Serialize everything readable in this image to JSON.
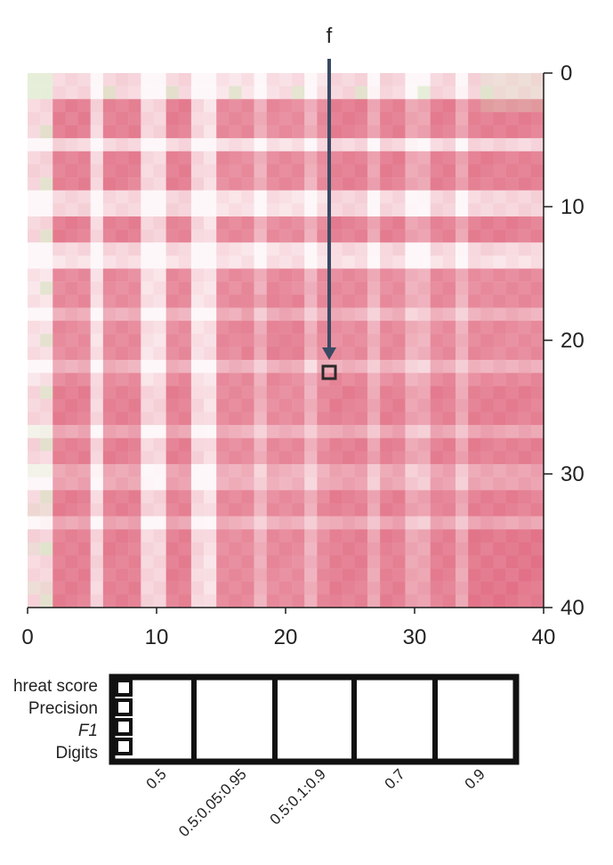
{
  "chart_data": {
    "type": "heatmap",
    "title": "",
    "xlabel": "",
    "ylabel": "",
    "size": 41,
    "x_ticks": [
      "0",
      "10",
      "20",
      "30",
      "40"
    ],
    "y_ticks": [
      "0",
      "10",
      "20",
      "30",
      "40"
    ],
    "xlim": [
      0,
      40
    ],
    "ylim": [
      0,
      40
    ],
    "annotation": {
      "label": "f",
      "cell": [
        24,
        23
      ],
      "arrow_from_above": true
    },
    "colors": {
      "high": "#e0687f",
      "low": "#ffffff",
      "green": "#d8e8c5",
      "marker": "#2a2a2a",
      "arrow": "#3a4a63"
    },
    "block_boundaries": [
      0,
      2,
      6,
      10,
      14,
      18,
      22,
      26,
      30,
      34,
      38,
      41
    ],
    "row_groups": [
      {
        "rows": [
          0,
          1
        ],
        "tone": "green-white"
      },
      {
        "rows": [
          5
        ],
        "tone": "white"
      },
      {
        "rows": [
          9,
          10
        ],
        "tone": "white"
      },
      {
        "rows": [
          13,
          14
        ],
        "tone": "white"
      },
      {
        "rows": [
          18
        ],
        "tone": "light"
      },
      {
        "rows": [
          22
        ],
        "tone": "light"
      },
      {
        "rows": [
          27
        ],
        "tone": "light"
      },
      {
        "rows": [
          30,
          31
        ],
        "tone": "light"
      },
      {
        "rows": [
          34
        ],
        "tone": "light"
      }
    ]
  },
  "legend": {
    "row_labels": [
      "hreat score",
      "Precision",
      "F1",
      "Digits"
    ],
    "column_labels": [
      "0.5",
      "0.5:0.05:0.95",
      "0.5:0.1:0.9",
      "0.7",
      "0.9"
    ]
  }
}
